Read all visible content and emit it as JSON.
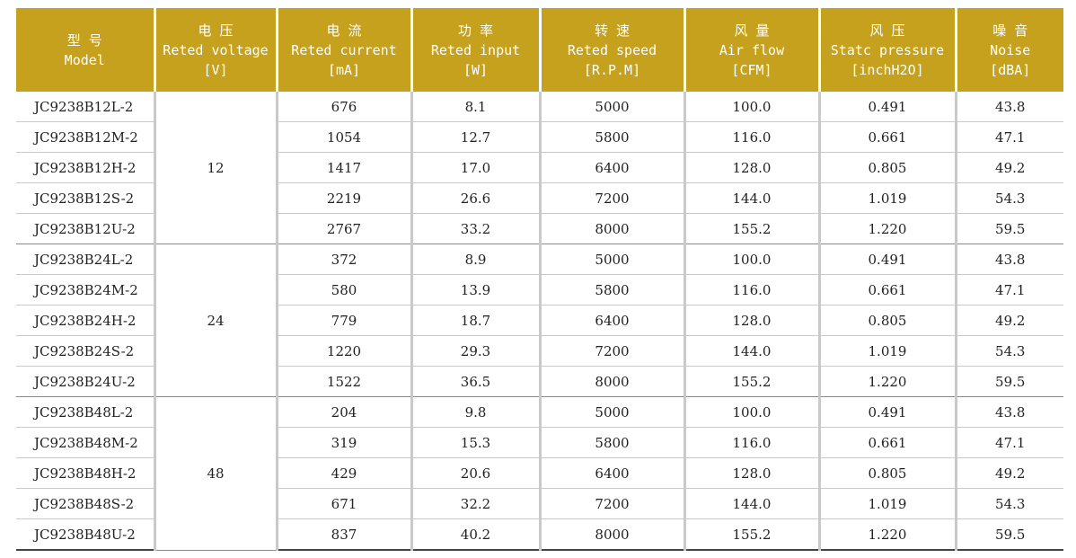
{
  "headers": [
    {
      "cn": "型 号",
      "en": "Model",
      "unit": ""
    },
    {
      "cn": "电 压",
      "en": "Reted voltage",
      "unit": "[V]"
    },
    {
      "cn": "电 流",
      "en": "Reted current",
      "unit": "[mA]"
    },
    {
      "cn": "功 率",
      "en": "Reted input",
      "unit": "[W]"
    },
    {
      "cn": "转 速",
      "en": "Reted speed",
      "unit": "[R.P.M]"
    },
    {
      "cn": "风 量",
      "en": "Air flow",
      "unit": "[CFM]"
    },
    {
      "cn": "风 压",
      "en": "Statc pressure",
      "unit": "[inchH2O]"
    },
    {
      "cn": "噪 音",
      "en": "Noise",
      "unit": "[dBA]"
    }
  ],
  "groups": [
    {
      "voltage": "12",
      "rows": [
        {
          "model": "JC9238B12L-2",
          "current": "676",
          "input": "8.1",
          "speed": "5000",
          "airflow": "100.0",
          "pressure": "0.491",
          "noise": "43.8"
        },
        {
          "model": "JC9238B12M-2",
          "current": "1054",
          "input": "12.7",
          "speed": "5800",
          "airflow": "116.0",
          "pressure": "0.661",
          "noise": "47.1"
        },
        {
          "model": "JC9238B12H-2",
          "current": "1417",
          "input": "17.0",
          "speed": "6400",
          "airflow": "128.0",
          "pressure": "0.805",
          "noise": "49.2"
        },
        {
          "model": "JC9238B12S-2",
          "current": "2219",
          "input": "26.6",
          "speed": "7200",
          "airflow": "144.0",
          "pressure": "1.019",
          "noise": "54.3"
        },
        {
          "model": "JC9238B12U-2",
          "current": "2767",
          "input": "33.2",
          "speed": "8000",
          "airflow": "155.2",
          "pressure": "1.220",
          "noise": "59.5"
        }
      ]
    },
    {
      "voltage": "24",
      "rows": [
        {
          "model": "JC9238B24L-2",
          "current": "372",
          "input": "8.9",
          "speed": "5000",
          "airflow": "100.0",
          "pressure": "0.491",
          "noise": "43.8"
        },
        {
          "model": "JC9238B24M-2",
          "current": "580",
          "input": "13.9",
          "speed": "5800",
          "airflow": "116.0",
          "pressure": "0.661",
          "noise": "47.1"
        },
        {
          "model": "JC9238B24H-2",
          "current": "779",
          "input": "18.7",
          "speed": "6400",
          "airflow": "128.0",
          "pressure": "0.805",
          "noise": "49.2"
        },
        {
          "model": "JC9238B24S-2",
          "current": "1220",
          "input": "29.3",
          "speed": "7200",
          "airflow": "144.0",
          "pressure": "1.019",
          "noise": "54.3"
        },
        {
          "model": "JC9238B24U-2",
          "current": "1522",
          "input": "36.5",
          "speed": "8000",
          "airflow": "155.2",
          "pressure": "1.220",
          "noise": "59.5"
        }
      ]
    },
    {
      "voltage": "48",
      "rows": [
        {
          "model": "JC9238B48L-2",
          "current": "204",
          "input": "9.8",
          "speed": "5000",
          "airflow": "100.0",
          "pressure": "0.491",
          "noise": "43.8"
        },
        {
          "model": "JC9238B48M-2",
          "current": "319",
          "input": "15.3",
          "speed": "5800",
          "airflow": "116.0",
          "pressure": "0.661",
          "noise": "47.1"
        },
        {
          "model": "JC9238B48H-2",
          "current": "429",
          "input": "20.6",
          "speed": "6400",
          "airflow": "128.0",
          "pressure": "0.805",
          "noise": "49.2"
        },
        {
          "model": "JC9238B48S-2",
          "current": "671",
          "input": "32.2",
          "speed": "7200",
          "airflow": "144.0",
          "pressure": "1.019",
          "noise": "54.3"
        },
        {
          "model": "JC9238B48U-2",
          "current": "837",
          "input": "40.2",
          "speed": "8000",
          "airflow": "155.2",
          "pressure": "1.220",
          "noise": "59.5"
        }
      ]
    }
  ]
}
